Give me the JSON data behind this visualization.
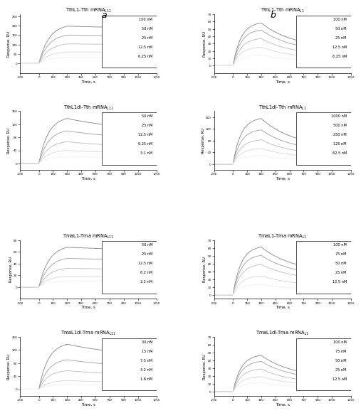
{
  "panels": [
    {
      "title_prot": "TthL1",
      "title_rna": "Tth",
      "title_sub": "L11",
      "ylim": [
        -50,
        260
      ],
      "yticks": [
        0,
        50,
        100,
        150,
        200,
        250
      ],
      "legend": [
        "100 nM",
        "50 nM",
        "25 nM",
        "12.5 nM",
        "6.25 nM"
      ],
      "assoc_max": [
        210,
        160,
        110,
        65,
        35
      ],
      "dissoc_end": [
        170,
        135,
        95,
        57,
        32
      ],
      "curve_type": "slow_dissoc",
      "col": 0,
      "row": 0
    },
    {
      "title_prot": "TthL1",
      "title_rna": "Tth",
      "title_sub": "L1",
      "ylim": [
        -10,
        70
      ],
      "yticks": [
        0,
        10,
        20,
        30,
        40,
        50,
        60,
        70
      ],
      "legend": [
        "100 nM",
        "50 nM",
        "25 nM",
        "12.5 nM",
        "6.25 nM"
      ],
      "assoc_max": [
        60,
        50,
        38,
        26,
        15
      ],
      "dissoc_end": [
        23,
        18,
        13,
        9,
        5
      ],
      "curve_type": "fast_dissoc",
      "col": 1,
      "row": 0
    },
    {
      "title_prot": "TthL1dl",
      "title_rna": "Tth",
      "title_sub": "L11",
      "ylim": [
        -20,
        160
      ],
      "yticks": [
        0,
        40,
        80,
        120,
        160
      ],
      "legend": [
        "50 nM",
        "25 nM",
        "12.5 nM",
        "6.25 nM",
        "3.1 nM"
      ],
      "assoc_max": [
        145,
        105,
        70,
        42,
        22
      ],
      "dissoc_end": [
        95,
        70,
        46,
        28,
        15
      ],
      "curve_type": "medium_dissoc",
      "col": 0,
      "row": 1
    },
    {
      "title_prot": "TthL1dl",
      "title_rna": "Tth",
      "title_sub": "L1",
      "ylim": [
        -20,
        180
      ],
      "yticks": [
        0,
        40,
        80,
        120,
        160
      ],
      "legend": [
        "1000 nM",
        "500 nM",
        "250 nM",
        "125 nM",
        "62.5 nM"
      ],
      "assoc_max": [
        160,
        120,
        85,
        55,
        30
      ],
      "dissoc_end": [
        55,
        40,
        28,
        18,
        10
      ],
      "curve_type": "fast_dissoc",
      "col": 1,
      "row": 1
    },
    {
      "title_prot": "TmaL1",
      "title_rna": "Tma",
      "title_sub": "L11",
      "ylim": [
        -20,
        80
      ],
      "yticks": [
        0,
        20,
        40,
        60,
        80
      ],
      "legend": [
        "50 nM",
        "25 nM",
        "12.5 nM",
        "6.2 nM",
        "3.2 nM"
      ],
      "assoc_max": [
        72,
        52,
        34,
        20,
        11
      ],
      "dissoc_end": [
        55,
        40,
        26,
        16,
        9
      ],
      "curve_type": "slow_dissoc",
      "col": 0,
      "row": 2
    },
    {
      "title_prot": "TmaL1",
      "title_rna": "Tma",
      "title_sub": "L1",
      "ylim": [
        -5,
        70
      ],
      "yticks": [
        0,
        10,
        20,
        30,
        40,
        50,
        60,
        70
      ],
      "legend": [
        "100 nM",
        "75 nM",
        "50 nM",
        "25 nM",
        "12.5 nM"
      ],
      "assoc_max": [
        63,
        52,
        40,
        25,
        14
      ],
      "dissoc_end": [
        28,
        23,
        18,
        11,
        6
      ],
      "curve_type": "fast_dissoc",
      "col": 1,
      "row": 2
    },
    {
      "title_prot": "TmaL1dl",
      "title_rna": "Tma",
      "title_sub": "L11",
      "ylim": [
        -20,
        160
      ],
      "yticks": [
        0,
        40,
        80,
        120,
        160
      ],
      "legend": [
        "30 nM",
        "15 nM",
        "7.5 nM",
        "3.2 nM",
        "1.8 nM"
      ],
      "assoc_max": [
        145,
        95,
        60,
        28,
        16
      ],
      "dissoc_end": [
        95,
        62,
        39,
        18,
        10
      ],
      "curve_type": "medium_dissoc",
      "col": 0,
      "row": 3
    },
    {
      "title_prot": "TmaL1dl",
      "title_rna": "Tma",
      "title_sub": "L1",
      "ylim": [
        -5,
        70
      ],
      "yticks": [
        0,
        10,
        20,
        30,
        40,
        50,
        60,
        70
      ],
      "legend": [
        "100 nM",
        "75 nM",
        "50 nM",
        "25 nM",
        "12.5 nM"
      ],
      "assoc_max": [
        48,
        40,
        30,
        20,
        12
      ],
      "dissoc_end": [
        17,
        14,
        10,
        7,
        4
      ],
      "curve_type": "fast_dissoc",
      "col": 1,
      "row": 3
    }
  ],
  "t_start": -200,
  "t_end": 1250,
  "t_assoc_start": 0,
  "t_dissoc_start": 300,
  "xlabel": "Time, s",
  "ylabel": "Response, RU",
  "xtick_vals": [
    -200,
    0,
    150,
    300,
    450,
    600,
    750,
    900,
    1050,
    1250
  ],
  "bg_color": "#ffffff"
}
